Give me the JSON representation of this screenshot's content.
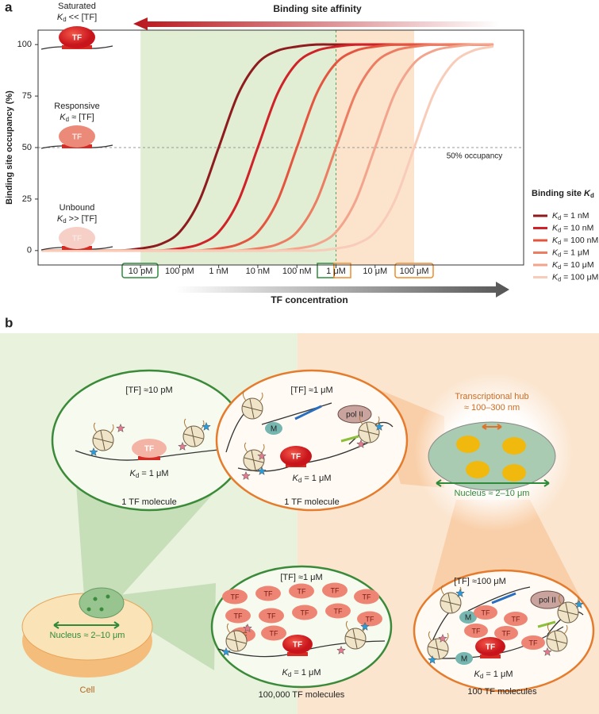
{
  "chart_data": {
    "type": "line",
    "panel_label": "a",
    "affinity_label": "Binding site affinity",
    "x_label": "TF concentration",
    "y_label": "Binding site occupancy (%)",
    "xscale": "log",
    "x": [
      3.16e-14,
      1e-13,
      3.16e-13,
      1e-12,
      3.16e-12,
      1e-11,
      3.16e-11,
      1e-10,
      3.16e-10,
      1e-09,
      3.16e-09,
      1e-08,
      3.16e-08,
      1e-07,
      3.16e-07,
      1e-06,
      3.16e-06,
      1e-05,
      3.16e-05,
      0.0001,
      0.000316,
      0.001,
      0.00316,
      0.01
    ],
    "xlim": [
      2.4e-14,
      0.063
    ],
    "ylim": [
      -7,
      107
    ],
    "xticks": [
      {
        "value": 1e-11,
        "label": "10 pM"
      },
      {
        "value": 1e-10,
        "label": "100 pM"
      },
      {
        "value": 1e-09,
        "label": "1 nM"
      },
      {
        "value": 1e-08,
        "label": "10 nM"
      },
      {
        "value": 1e-07,
        "label": "100 nM"
      },
      {
        "value": 1e-06,
        "label": "1 μM"
      },
      {
        "value": 1e-05,
        "label": "10 μM"
      },
      {
        "value": 0.0001,
        "label": "100 μM"
      }
    ],
    "yticks": [
      0,
      25,
      50,
      75,
      100
    ],
    "grid": false,
    "legend": "right",
    "legend_title": "Binding site Kd",
    "series": [
      {
        "name": "Kd = 1 nM",
        "color": "#8e1b1e",
        "values": [
          0,
          0,
          0,
          0,
          0,
          1,
          3,
          9,
          24,
          50,
          76,
          91,
          97,
          99,
          100,
          100,
          100,
          100,
          100,
          100,
          100,
          100,
          100,
          100
        ]
      },
      {
        "name": "Kd = 10 nM",
        "color": "#cf2229",
        "values": [
          0,
          0,
          0,
          0,
          0,
          0,
          0,
          1,
          3,
          9,
          24,
          50,
          76,
          91,
          97,
          99,
          100,
          100,
          100,
          100,
          100,
          100,
          100,
          100
        ]
      },
      {
        "name": "Kd = 100 nM",
        "color": "#e4553f",
        "values": [
          0,
          0,
          0,
          0,
          0,
          0,
          0,
          0,
          0,
          1,
          3,
          9,
          24,
          50,
          76,
          91,
          97,
          99,
          100,
          100,
          100,
          100,
          100,
          100
        ]
      },
      {
        "name": "Kd = 1 μM",
        "color": "#ec7d62",
        "values": [
          0,
          0,
          0,
          0,
          0,
          0,
          0,
          0,
          0,
          0,
          0,
          1,
          3,
          9,
          24,
          50,
          76,
          91,
          97,
          99,
          100,
          100,
          100,
          100
        ]
      },
      {
        "name": "Kd = 10 μM",
        "color": "#f2a58c",
        "values": [
          0,
          0,
          0,
          0,
          0,
          0,
          0,
          0,
          0,
          0,
          0,
          0,
          0,
          1,
          3,
          9,
          24,
          50,
          76,
          91,
          97,
          99,
          100,
          100
        ]
      },
      {
        "name": "Kd = 100 μM",
        "color": "#f8ccb8",
        "values": [
          0,
          0,
          0,
          0,
          0,
          0,
          0,
          0,
          0,
          0,
          0,
          0,
          0,
          0,
          0,
          1,
          3,
          9,
          24,
          50,
          76,
          91,
          97,
          99
        ]
      }
    ],
    "shaded_regions": [
      {
        "from": 1e-11,
        "to": 1e-06,
        "color": "#e1eed3"
      },
      {
        "from": 1e-06,
        "to": 0.0001,
        "color": "#fbe3cc"
      }
    ],
    "reference_lines": {
      "y": 50,
      "y_label": "50% occupancy",
      "x": 1e-06
    },
    "states": [
      {
        "name": "Saturated",
        "relation": "Kd << [TF]",
        "tf": "TF"
      },
      {
        "name": "Responsive",
        "relation": "Kd ≈ [TF]",
        "tf": "TF"
      },
      {
        "name": "Unbound",
        "relation": "Kd >> [TF]",
        "tf": "TF"
      }
    ]
  },
  "diagram": {
    "panel_label": "b",
    "views": [
      {
        "concentration": "[TF] ≈10 pM",
        "tf": "TF",
        "kd": "Kd = 1 μM",
        "caption": "1 TF molecule"
      },
      {
        "concentration": "[TF] ≈1 μM",
        "tf": "TF",
        "pol": "pol II",
        "m": [
          "M"
        ],
        "kd": "Kd = 1 μM",
        "caption": "1 TF molecule"
      },
      {
        "concentration": "[TF] ≈1 μM",
        "free_tf": [
          "TF",
          "TF",
          "TF",
          "TF",
          "TF",
          "TF",
          "TF",
          "TF",
          "TF",
          "TF",
          "TF",
          "TF"
        ],
        "tf": "TF",
        "kd": "Kd = 1 μM",
        "caption": "100,000 TF molecules"
      },
      {
        "concentration": "[TF] ≈100 μM",
        "free_tf": [
          "TF",
          "TF",
          "TF",
          "TF",
          "TF"
        ],
        "tf": "TF",
        "pol": "pol II",
        "m": [
          "M",
          "M"
        ],
        "kd": "Kd = 1 μM",
        "caption": "100 TF molecules"
      }
    ],
    "hub": {
      "title": "Transcriptional hub",
      "size": "≈ 100–300 nm",
      "nucleus": "Nucleus ≈ 2–10 μm"
    },
    "cell": {
      "nucleus": "Nucleus ≈ 2–10 μm",
      "label": "Cell"
    }
  }
}
